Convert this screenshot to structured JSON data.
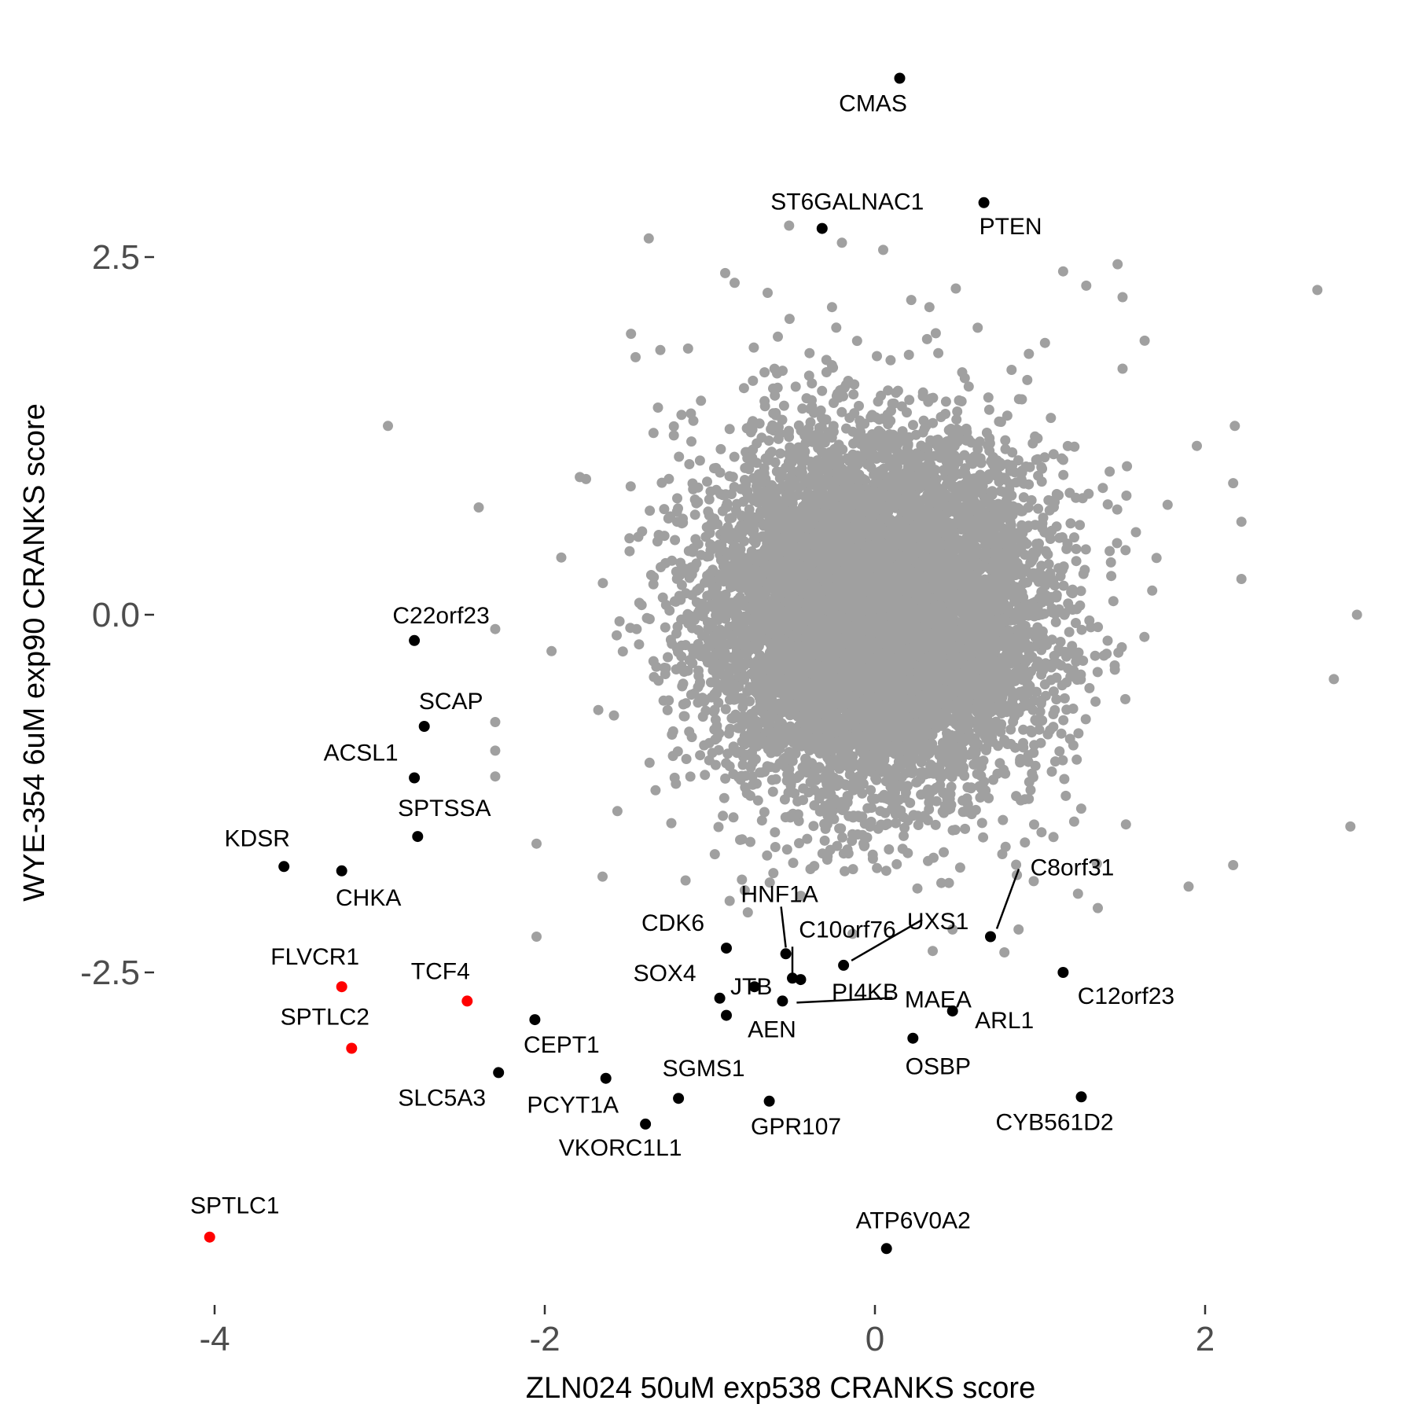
{
  "chart_data": {
    "type": "scatter",
    "xlabel": "ZLN024 50uM exp538 CRANKS score",
    "ylabel": "WYE-354 6uM exp90 CRANKS score",
    "xlim": [
      -4.4,
      3.1
    ],
    "ylim": [
      -4.7,
      3.8
    ],
    "x_ticks": [
      {
        "value": -4,
        "label": "-4"
      },
      {
        "value": -2,
        "label": "-2"
      },
      {
        "value": 0,
        "label": "0"
      },
      {
        "value": 2,
        "label": "2"
      }
    ],
    "y_ticks": [
      {
        "value": 2.5,
        "label": "2.5"
      },
      {
        "value": 0,
        "label": "0.0"
      },
      {
        "value": -2.5,
        "label": "-2.5"
      }
    ],
    "grid": false,
    "legend": "none",
    "colors": {
      "background_points": "#a0a0a0",
      "labeled_points": "#000000",
      "highlight_points": "#ff0000"
    },
    "background_cloud": {
      "center": [
        0.0,
        0.0
      ],
      "sd": [
        0.5,
        0.62
      ],
      "n_points": 9000,
      "outliers": [
        [
          -2.95,
          1.32
        ],
        [
          -2.4,
          0.75
        ],
        [
          -2.3,
          -0.1
        ],
        [
          -2.3,
          -0.75
        ],
        [
          -2.3,
          -0.95
        ],
        [
          -2.3,
          -1.13
        ],
        [
          -2.05,
          -1.6
        ],
        [
          -2.05,
          -2.25
        ],
        [
          -1.9,
          0.4
        ],
        [
          -1.45,
          1.8
        ],
        [
          -1.3,
          1.85
        ],
        [
          -1.37,
          2.63
        ],
        [
          -0.85,
          2.32
        ],
        [
          -0.65,
          2.25
        ],
        [
          -0.52,
          2.72
        ],
        [
          -0.26,
          2.15
        ],
        [
          -0.2,
          2.6
        ],
        [
          0.05,
          2.55
        ],
        [
          0.22,
          2.2
        ],
        [
          0.33,
          2.15
        ],
        [
          0.49,
          2.28
        ],
        [
          1.03,
          1.9
        ],
        [
          1.14,
          2.4
        ],
        [
          1.28,
          2.3
        ],
        [
          1.5,
          2.22
        ],
        [
          1.47,
          2.45
        ],
        [
          1.5,
          1.72
        ],
        [
          1.95,
          1.18
        ],
        [
          2.18,
          1.32
        ],
        [
          2.17,
          0.92
        ],
        [
          2.22,
          0.65
        ],
        [
          2.22,
          0.25
        ],
        [
          2.68,
          2.27
        ],
        [
          2.78,
          -0.45
        ],
        [
          2.92,
          0.0
        ],
        [
          2.88,
          -1.48
        ],
        [
          2.17,
          -1.75
        ],
        [
          1.9,
          -1.9
        ],
        [
          1.35,
          -2.05
        ],
        [
          1.23,
          -1.95
        ],
        [
          0.87,
          -2.2
        ],
        [
          0.47,
          -2.2
        ],
        [
          0.35,
          -2.35
        ],
        [
          -0.77,
          -2.08
        ],
        [
          -0.88,
          -2.0
        ],
        [
          -1.65,
          -1.83
        ]
      ]
    },
    "labeled_points": [
      {
        "label": "CMAS",
        "x": 0.15,
        "y": 3.75,
        "color": "black"
      },
      {
        "label": "ST6GALNAC1",
        "x": -0.32,
        "y": 2.7,
        "color": "black"
      },
      {
        "label": "PTEN",
        "x": 0.66,
        "y": 2.88,
        "color": "black"
      },
      {
        "label": "C22orf23",
        "x": -2.79,
        "y": -0.18,
        "color": "black"
      },
      {
        "label": "SCAP",
        "x": -2.73,
        "y": -0.78,
        "color": "black"
      },
      {
        "label": "ACSL1",
        "x": -2.79,
        "y": -1.14,
        "color": "black"
      },
      {
        "label": "SPTSSA",
        "x": -2.77,
        "y": -1.55,
        "color": "black"
      },
      {
        "label": "KDSR",
        "x": -3.58,
        "y": -1.76,
        "color": "black"
      },
      {
        "label": "CHKA",
        "x": -3.23,
        "y": -1.79,
        "color": "black"
      },
      {
        "label": "FLVCR1",
        "x": -3.23,
        "y": -2.6,
        "color": "red"
      },
      {
        "label": "SPTLC2",
        "x": -3.17,
        "y": -3.03,
        "color": "red"
      },
      {
        "label": "TCF4",
        "x": -2.47,
        "y": -2.7,
        "color": "red"
      },
      {
        "label": "SPTLC1",
        "x": -4.03,
        "y": -4.35,
        "color": "red"
      },
      {
        "label": "CEPT1",
        "x": -2.06,
        "y": -2.83,
        "color": "black"
      },
      {
        "label": "SLC5A3",
        "x": -2.28,
        "y": -3.2,
        "color": "black"
      },
      {
        "label": "PCYT1A",
        "x": -1.63,
        "y": -3.24,
        "color": "black"
      },
      {
        "label": "VKORC1L1",
        "x": -1.39,
        "y": -3.56,
        "color": "black"
      },
      {
        "label": "SGMS1",
        "x": -1.19,
        "y": -3.38,
        "color": "black"
      },
      {
        "label": "GPR107",
        "x": -0.64,
        "y": -3.4,
        "color": "black"
      },
      {
        "label": "CDK6",
        "x": -0.9,
        "y": -2.33,
        "color": "black"
      },
      {
        "label": "SOX4",
        "x": -0.94,
        "y": -2.68,
        "color": "black"
      },
      {
        "label": "JTB",
        "x": -0.73,
        "y": -2.6,
        "color": "black"
      },
      {
        "label": "AEN",
        "x": -0.9,
        "y": -2.8,
        "color": "black"
      },
      {
        "label": "HNF1A",
        "x": -0.54,
        "y": -2.37,
        "color": "black"
      },
      {
        "label": "C10orf76",
        "x": -0.5,
        "y": -2.54,
        "color": "black"
      },
      {
        "label": "PI4KB",
        "x": -0.45,
        "y": -2.55,
        "color": "black"
      },
      {
        "label": "MAEA",
        "x": -0.56,
        "y": -2.7,
        "color": "black"
      },
      {
        "label": "UXS1",
        "x": -0.19,
        "y": -2.45,
        "color": "black"
      },
      {
        "label": "C8orf31",
        "x": 0.7,
        "y": -2.25,
        "color": "black"
      },
      {
        "label": "C12orf23",
        "x": 1.14,
        "y": -2.5,
        "color": "black"
      },
      {
        "label": "ARL1",
        "x": 0.47,
        "y": -2.77,
        "color": "black"
      },
      {
        "label": "OSBP",
        "x": 0.23,
        "y": -2.96,
        "color": "black"
      },
      {
        "label": "CYB561D2",
        "x": 1.25,
        "y": -3.37,
        "color": "black"
      },
      {
        "label": "ATP6V0A2",
        "x": 0.07,
        "y": -4.43,
        "color": "black"
      }
    ]
  }
}
